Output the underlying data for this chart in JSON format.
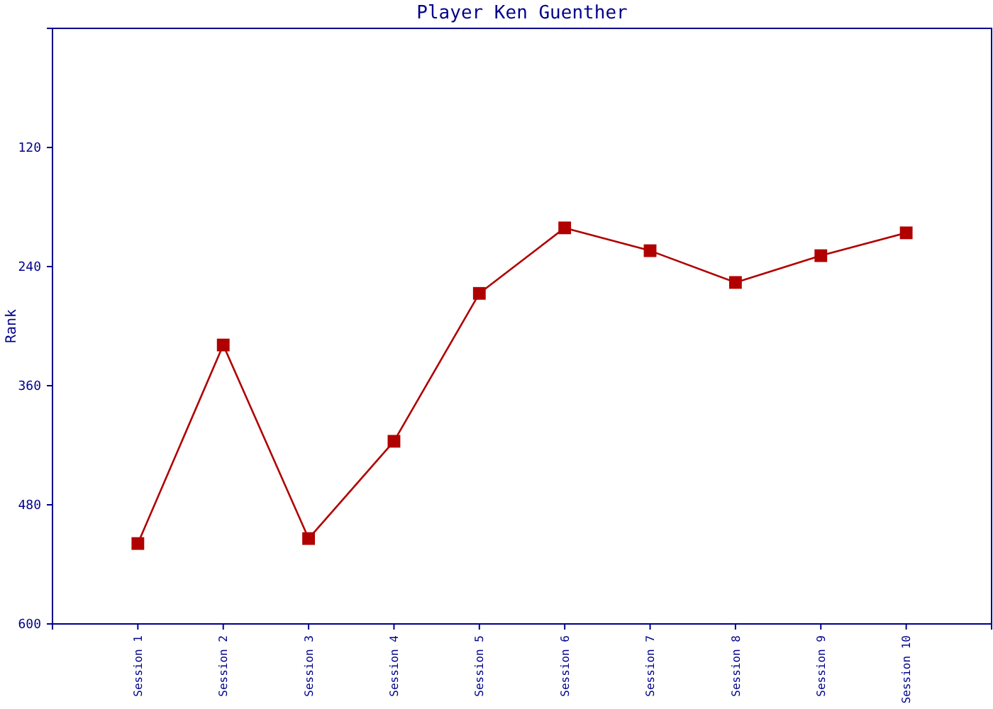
{
  "chart_data": {
    "type": "line",
    "title": "Player Ken Guenther",
    "ylabel": "Rank",
    "categories": [
      "Session 1",
      "Session 2",
      "Session 3",
      "Session 4",
      "Session 5",
      "Session 6",
      "Session 7",
      "Session 8",
      "Session 9",
      "Session 10"
    ],
    "series": [
      {
        "color": "#b00000",
        "values": [
          519,
          319,
          514,
          416,
          267,
          201,
          224,
          256,
          229,
          206
        ]
      }
    ],
    "ylim": [
      600,
      0
    ],
    "yticks": [
      120,
      240,
      360,
      480,
      600
    ],
    "grid": false,
    "marker": "square",
    "line_style": "solid"
  }
}
